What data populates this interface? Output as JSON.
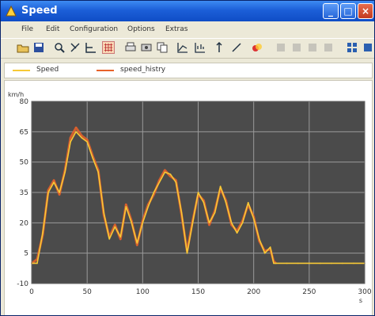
{
  "window": {
    "title": "Speed",
    "controls": [
      "minimize",
      "maximize",
      "close"
    ]
  },
  "menu": [
    "File",
    "Edit",
    "Configuration",
    "Options",
    "Extras"
  ],
  "toolbar": {
    "icons": [
      "open-icon",
      "save-icon",
      "zoom-icon",
      "cursor-icon",
      "crosshair-icon",
      "grid-icon",
      "print-icon",
      "print-preview-icon",
      "copy-icon",
      "axis-icon",
      "scale-icon",
      "marker-icon",
      "line-icon",
      "color-icon",
      "export-icon",
      "settings-icon"
    ]
  },
  "legend": [
    {
      "label": "Speed",
      "color": "#f7c936"
    },
    {
      "label": "speed_histry",
      "color": "#e8622a"
    }
  ],
  "chart_data": {
    "type": "line",
    "yunit": "km/h",
    "xunit": "s",
    "xlim": [
      0,
      300
    ],
    "ylim": [
      -10,
      80
    ],
    "xticks": [
      0,
      50,
      100,
      150,
      200,
      250,
      300
    ],
    "yticks": [
      -10,
      5,
      20,
      35,
      50,
      65,
      80
    ],
    "grid": true,
    "background": "#4b4b4b",
    "series": [
      {
        "name": "Speed",
        "color": "#f7c936",
        "x": [
          0,
          5,
          10,
          15,
          20,
          25,
          30,
          35,
          40,
          45,
          50,
          55,
          60,
          65,
          70,
          75,
          80,
          85,
          90,
          95,
          100,
          105,
          110,
          115,
          120,
          125,
          130,
          135,
          140,
          145,
          150,
          155,
          160,
          165,
          170,
          175,
          180,
          185,
          190,
          195,
          200,
          205,
          210,
          215,
          218,
          220,
          230,
          240,
          250,
          260,
          270,
          280,
          290,
          300
        ],
        "y": [
          0,
          0,
          15,
          35,
          40,
          35,
          45,
          60,
          65,
          62,
          60,
          52,
          45,
          25,
          12,
          18,
          13,
          28,
          20,
          10,
          20,
          28,
          35,
          40,
          45,
          44,
          40,
          25,
          5,
          20,
          35,
          30,
          20,
          25,
          38,
          30,
          20,
          15,
          20,
          30,
          22,
          12,
          5,
          8,
          0,
          0,
          0,
          0,
          0,
          0,
          0,
          0,
          0,
          0
        ]
      },
      {
        "name": "speed_histry",
        "color": "#e8622a",
        "x": [
          0,
          5,
          10,
          15,
          20,
          25,
          30,
          35,
          40,
          45,
          50,
          55,
          60,
          65,
          70,
          75,
          80,
          85,
          90,
          95,
          100,
          105,
          110,
          115,
          120,
          125,
          130,
          135,
          140,
          145,
          150,
          155,
          160,
          165,
          170,
          175,
          180,
          185,
          190,
          195,
          200,
          205,
          210,
          215,
          218,
          220
        ],
        "y": [
          0,
          2,
          14,
          36,
          41,
          34,
          46,
          62,
          67,
          63,
          61,
          53,
          46,
          24,
          13,
          19,
          12,
          29,
          21,
          9,
          21,
          29,
          34,
          41,
          46,
          43,
          41,
          24,
          6,
          21,
          34,
          31,
          19,
          26,
          37,
          31,
          19,
          16,
          21,
          29,
          23,
          11,
          6,
          7,
          1,
          0
        ]
      }
    ]
  }
}
